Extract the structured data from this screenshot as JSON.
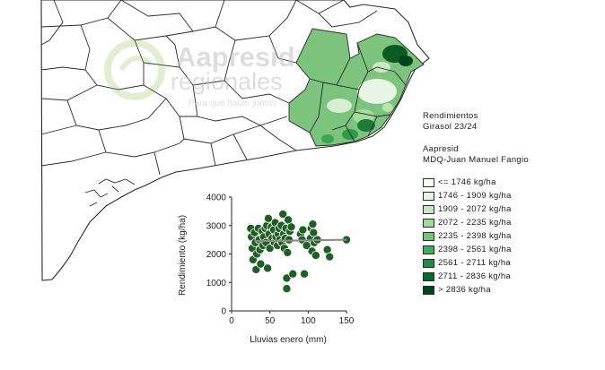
{
  "watermark": {
    "line1": "Aapresid",
    "line2": "regionales",
    "line3": "Para que hacer juntos"
  },
  "legend": {
    "title_line1": "Rendimientos",
    "title_line2": "Girasol 23/24",
    "source_line1": "Aapresid",
    "source_line2": "MDQ-Juan Manuel Fangio",
    "items": [
      {
        "label": "<= 1746 kg/ha",
        "color": "#f7fcf5"
      },
      {
        "label": "1746 - 1909 kg/ha",
        "color": "#e5f5e0"
      },
      {
        "label": "1909 - 2072 kg/ha",
        "color": "#c7e9c0"
      },
      {
        "label": "2072 - 2235 kg/ha",
        "color": "#a1d99b"
      },
      {
        "label": "2235 - 2398 kg/ha",
        "color": "#74c476"
      },
      {
        "label": "2398 - 2561 kg/ha",
        "color": "#41ab5d"
      },
      {
        "label": "2561 - 2711 kg/ha",
        "color": "#238b45"
      },
      {
        "label": "2711 - 2836 kg/ha",
        "color": "#006d2c"
      },
      {
        "label": "> 2836 kg/ha",
        "color": "#00441b"
      }
    ]
  },
  "chart_data": {
    "type": "scatter",
    "xlabel": "Lluvias enero (mm)",
    "ylabel": "Rendimiento (kg/ha)",
    "xlim": [
      0,
      150
    ],
    "ylim": [
      0,
      4000
    ],
    "xticks": [
      "0",
      "50",
      "100",
      "150"
    ],
    "yticks": [
      "0",
      "1000",
      "2000",
      "3000",
      "4000"
    ],
    "point_color": "#1f5f24",
    "trend_color": "#8c8c8c",
    "trend": {
      "x": [
        30,
        150
      ],
      "y": [
        2450,
        2500
      ]
    },
    "points": [
      {
        "x": 25,
        "y": 2900
      },
      {
        "x": 26,
        "y": 2600
      },
      {
        "x": 27,
        "y": 2200
      },
      {
        "x": 28,
        "y": 1800
      },
      {
        "x": 30,
        "y": 2750
      },
      {
        "x": 31,
        "y": 2400
      },
      {
        "x": 32,
        "y": 1450
      },
      {
        "x": 33,
        "y": 2000
      },
      {
        "x": 35,
        "y": 2900
      },
      {
        "x": 36,
        "y": 2500
      },
      {
        "x": 37,
        "y": 2150
      },
      {
        "x": 38,
        "y": 1650
      },
      {
        "x": 40,
        "y": 2800
      },
      {
        "x": 41,
        "y": 2300
      },
      {
        "x": 42,
        "y": 2600
      },
      {
        "x": 44,
        "y": 2900
      },
      {
        "x": 45,
        "y": 2400
      },
      {
        "x": 46,
        "y": 3000
      },
      {
        "x": 47,
        "y": 1500
      },
      {
        "x": 48,
        "y": 3250
      },
      {
        "x": 49,
        "y": 2700
      },
      {
        "x": 50,
        "y": 2200
      },
      {
        "x": 52,
        "y": 2950
      },
      {
        "x": 53,
        "y": 2550
      },
      {
        "x": 55,
        "y": 2850
      },
      {
        "x": 56,
        "y": 2400
      },
      {
        "x": 57,
        "y": 3100
      },
      {
        "x": 58,
        "y": 2600
      },
      {
        "x": 60,
        "y": 2300
      },
      {
        "x": 61,
        "y": 2700
      },
      {
        "x": 62,
        "y": 2900
      },
      {
        "x": 63,
        "y": 2500
      },
      {
        "x": 65,
        "y": 3000
      },
      {
        "x": 66,
        "y": 2400
      },
      {
        "x": 67,
        "y": 3400
      },
      {
        "x": 68,
        "y": 2700
      },
      {
        "x": 69,
        "y": 2200
      },
      {
        "x": 70,
        "y": 2550
      },
      {
        "x": 71,
        "y": 2900
      },
      {
        "x": 72,
        "y": 1150
      },
      {
        "x": 72,
        "y": 780
      },
      {
        "x": 73,
        "y": 2050
      },
      {
        "x": 74,
        "y": 3200
      },
      {
        "x": 75,
        "y": 2500
      },
      {
        "x": 76,
        "y": 2800
      },
      {
        "x": 78,
        "y": 2950
      },
      {
        "x": 80,
        "y": 1300
      },
      {
        "x": 90,
        "y": 2700
      },
      {
        "x": 92,
        "y": 2500
      },
      {
        "x": 93,
        "y": 2850
      },
      {
        "x": 95,
        "y": 1300
      },
      {
        "x": 98,
        "y": 2300
      },
      {
        "x": 103,
        "y": 2550
      },
      {
        "x": 104,
        "y": 2900
      },
      {
        "x": 105,
        "y": 2100
      },
      {
        "x": 106,
        "y": 3050
      },
      {
        "x": 107,
        "y": 2750
      },
      {
        "x": 108,
        "y": 2400
      },
      {
        "x": 110,
        "y": 1950
      },
      {
        "x": 112,
        "y": 2500
      },
      {
        "x": 125,
        "y": 2150
      },
      {
        "x": 128,
        "y": 1900
      },
      {
        "x": 150,
        "y": 2500
      }
    ]
  }
}
